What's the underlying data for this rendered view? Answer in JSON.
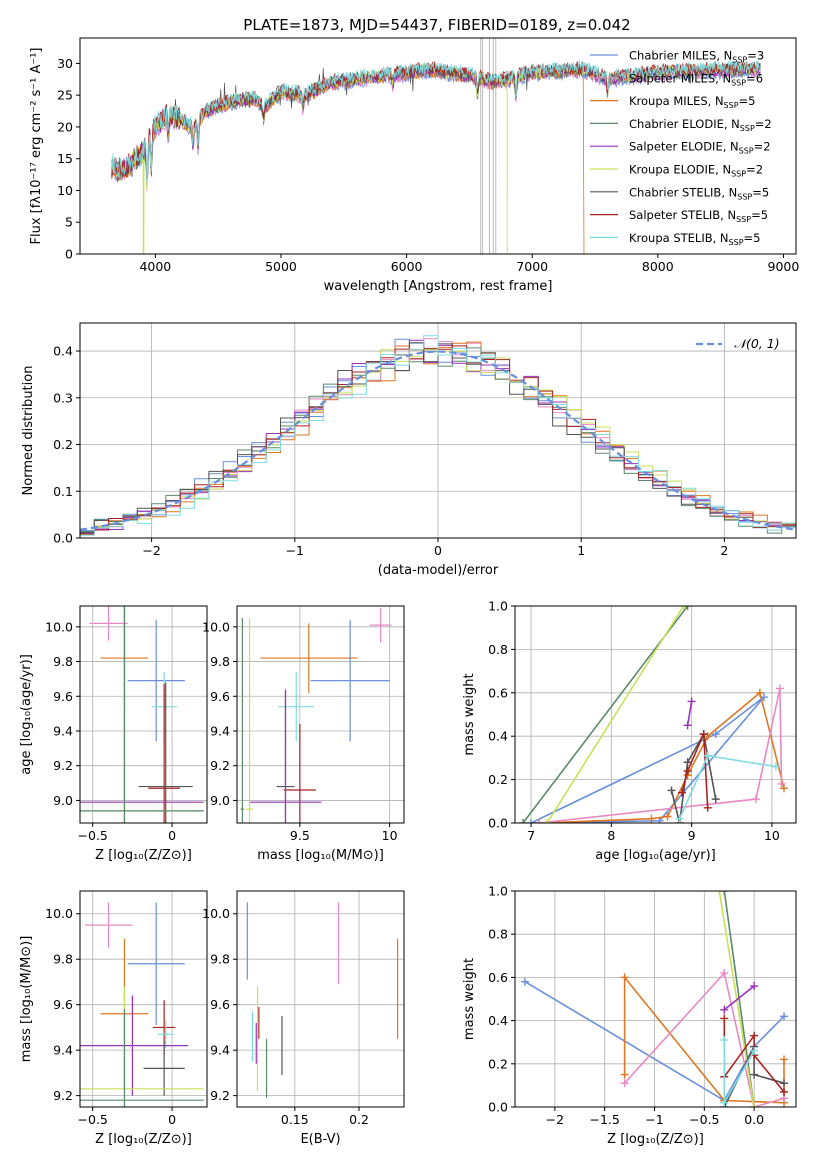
{
  "figure": {
    "title": "PLATE=1873, MJD=54437, FIBERID=0189, z=0.042"
  },
  "colors": {
    "ChabrierMILES": "#6a8fdc",
    "SalpeterMILES": "#e78ac3",
    "KroupaMILES": "#dd7722",
    "ChabrierELODIE": "#5a8a6a",
    "SalpeterELODIE": "#9933bb",
    "KroupaELODIE": "#c8e05a",
    "ChabrierSTELIB": "#555555",
    "SalpeterSTELIB": "#aa2222",
    "KroupaSTELIB": "#7fdbe0"
  },
  "chart_data": [
    {
      "id": "spectrum",
      "type": "line",
      "title": "PLATE=1873, MJD=54437, FIBERID=0189, z=0.042",
      "xlabel": "wavelength [Angstrom, rest frame]",
      "ylabel": "Flux [fλ10⁻¹⁷ erg cm⁻² s⁻¹ A⁻¹]",
      "xlim": [
        3400,
        9100
      ],
      "ylim": [
        0,
        34
      ],
      "xticks": [
        4000,
        5000,
        6000,
        7000,
        8000,
        9000
      ],
      "yticks": [
        0,
        5,
        10,
        15,
        20,
        25,
        30
      ],
      "grid": false,
      "legend_position": "top-right",
      "legend": [
        {
          "key": "ChabrierMILES",
          "label": "Chabrier MILES, N",
          "sub": "SSP",
          "tail": "=3"
        },
        {
          "key": "SalpeterMILES",
          "label": "Salpeter MILES, N",
          "sub": "SSP",
          "tail": "=6"
        },
        {
          "key": "KroupaMILES",
          "label": "Kroupa MILES, N",
          "sub": "SSP",
          "tail": "=5"
        },
        {
          "key": "ChabrierELODIE",
          "label": "Chabrier ELODIE, N",
          "sub": "SSP",
          "tail": "=2"
        },
        {
          "key": "SalpeterELODIE",
          "label": "Salpeter ELODIE, N",
          "sub": "SSP",
          "tail": "=2"
        },
        {
          "key": "KroupaELODIE",
          "label": "Kroupa ELODIE, N",
          "sub": "SSP",
          "tail": "=2"
        },
        {
          "key": "ChabrierSTELIB",
          "label": "Chabrier STELIB, N",
          "sub": "SSP",
          "tail": "=5"
        },
        {
          "key": "SalpeterSTELIB",
          "label": "Salpeter STELIB, N",
          "sub": "SSP",
          "tail": "=5"
        },
        {
          "key": "KroupaSTELIB",
          "label": "Kroupa STELIB, N",
          "sub": "SSP",
          "tail": "=5"
        }
      ],
      "continuum": [
        [
          3650,
          14
        ],
        [
          3700,
          13
        ],
        [
          3800,
          14
        ],
        [
          3900,
          16
        ],
        [
          4000,
          20
        ],
        [
          4100,
          22
        ],
        [
          4200,
          21
        ],
        [
          4300,
          20
        ],
        [
          4400,
          22.5
        ],
        [
          4600,
          24
        ],
        [
          4800,
          24.5
        ],
        [
          4860,
          23
        ],
        [
          5000,
          25.5
        ],
        [
          5200,
          25
        ],
        [
          5400,
          27
        ],
        [
          5600,
          27.5
        ],
        [
          5800,
          28
        ],
        [
          6000,
          28.5
        ],
        [
          6200,
          29
        ],
        [
          6500,
          28
        ],
        [
          6700,
          27
        ],
        [
          7000,
          28.5
        ],
        [
          7400,
          29
        ],
        [
          7600,
          27.5
        ],
        [
          8000,
          28.5
        ],
        [
          8500,
          29
        ],
        [
          8800,
          29
        ]
      ],
      "absorption": [
        [
          3934,
          -6
        ],
        [
          3968,
          -5
        ],
        [
          4102,
          -3
        ],
        [
          4300,
          -3
        ],
        [
          4340,
          -4
        ],
        [
          4861,
          -2
        ],
        [
          5175,
          -2
        ],
        [
          5890,
          -1.5
        ],
        [
          6563,
          -2.5
        ],
        [
          6870,
          -3
        ],
        [
          7600,
          -2
        ]
      ],
      "dropouts": [
        {
          "series": "KroupaELODIE",
          "x": 3905
        },
        {
          "series": "KroupaMILES",
          "x": 7410
        },
        {
          "series": "KroupaELODIE",
          "x": 6800
        }
      ],
      "masked_regions": [
        6590,
        6605,
        6660,
        6690,
        6710
      ]
    },
    {
      "id": "residuals",
      "type": "histogram",
      "xlabel": "(data-model)/error",
      "ylabel": "Normed distribution",
      "xlim": [
        -2.5,
        2.5
      ],
      "ylim": [
        0,
        0.46
      ],
      "xticks": [
        -2,
        -1,
        0,
        1,
        2
      ],
      "yticks": [
        0.0,
        0.1,
        0.2,
        0.3,
        0.4
      ],
      "grid": true,
      "bin_width": 0.1,
      "legend_position": "top-right",
      "legend_label": "𝒩(0, 1)",
      "reference_curve": "normal pdf, mean 0, sigma 1"
    },
    {
      "id": "Z-age",
      "type": "errorbar",
      "xlabel": "Z [log₁₀(Z/Z⊙)]",
      "ylabel": "age  [log₁₀(age/yr)]",
      "xlim": [
        -0.58,
        0.22
      ],
      "ylim": [
        8.87,
        10.12
      ],
      "xticks": [
        -0.5,
        0.0
      ],
      "yticks": [
        9.0,
        9.2,
        9.4,
        9.6,
        9.8,
        10.0
      ],
      "grid": true,
      "points": [
        {
          "s": "SalpeterMILES",
          "x": -0.4,
          "y": 10.02,
          "xe": 0.12,
          "ye": 0.1
        },
        {
          "s": "KroupaMILES",
          "x": -0.3,
          "y": 9.82,
          "xe": 0.15,
          "ye": 0.28
        },
        {
          "s": "ChabrierMILES",
          "x": -0.1,
          "y": 9.69,
          "xe": 0.18,
          "ye": 0.35
        },
        {
          "s": "KroupaSTELIB",
          "x": -0.05,
          "y": 9.54,
          "xe": 0.08,
          "ye": 0.2
        },
        {
          "s": "SalpeterSTELIB",
          "x": -0.05,
          "y": 9.07,
          "xe": 0.1,
          "ye": 0.6
        },
        {
          "s": "ChabrierSTELIB",
          "x": -0.04,
          "y": 9.08,
          "xe": 0.17,
          "ye": 0.6
        },
        {
          "s": "SalpeterELODIE",
          "x": -0.3,
          "y": 8.99,
          "xe": 0.5,
          "ye": 1.2
        },
        {
          "s": "KroupaELODIE",
          "x": -0.3,
          "y": 8.94,
          "xe": 0.5,
          "ye": 1.2
        },
        {
          "s": "ChabrierELODIE",
          "x": -0.3,
          "y": 8.94,
          "xe": 0.5,
          "ye": 1.2
        }
      ]
    },
    {
      "id": "mass-age",
      "type": "errorbar",
      "xlabel": "mass [log₁₀(M/M⊙)]",
      "ylabel": "",
      "xlim": [
        9.15,
        10.08
      ],
      "ylim": [
        8.87,
        10.12
      ],
      "xticks": [
        9.5,
        10.0
      ],
      "yticks": [
        9.0,
        9.2,
        9.4,
        9.6,
        9.8,
        10.0
      ],
      "grid": true,
      "points": [
        {
          "s": "SalpeterMILES",
          "x": 9.95,
          "y": 10.01,
          "xe": 0.06,
          "ye": 0.1
        },
        {
          "s": "KroupaMILES",
          "x": 9.55,
          "y": 9.82,
          "xe": 0.27,
          "ye": 0.2
        },
        {
          "s": "ChabrierMILES",
          "x": 9.78,
          "y": 9.69,
          "xe": 0.22,
          "ye": 0.35
        },
        {
          "s": "KroupaSTELIB",
          "x": 9.48,
          "y": 9.54,
          "xe": 0.1,
          "ye": 0.2
        },
        {
          "s": "SalpeterSTELIB",
          "x": 9.5,
          "y": 9.06,
          "xe": 0.09,
          "ye": 0.38
        },
        {
          "s": "ChabrierSTELIB",
          "x": 9.42,
          "y": 9.08,
          "xe": 0.05,
          "ye": 0.55
        },
        {
          "s": "SalpeterELODIE",
          "x": 9.42,
          "y": 8.99,
          "xe": 0.2,
          "ye": 0.65
        },
        {
          "s": "KroupaELODIE",
          "x": 9.22,
          "y": 8.95,
          "xe": 0.02,
          "ye": 1.1
        },
        {
          "s": "ChabrierELODIE",
          "x": 9.18,
          "y": 8.95,
          "xe": 0.01,
          "ye": 1.1
        }
      ]
    },
    {
      "id": "age-weight",
      "type": "line",
      "xlabel": "age  [log₁₀(age/yr)]",
      "ylabel": "mass weight",
      "xlim": [
        6.8,
        10.3
      ],
      "ylim": [
        0.0,
        1.0
      ],
      "xticks": [
        7,
        8,
        9,
        10
      ],
      "yticks": [
        0.0,
        0.2,
        0.4,
        0.6,
        0.8,
        1.0
      ],
      "grid": true,
      "series": [
        {
          "s": "ChabrierMILES",
          "pts": [
            [
              7.0,
              0.0
            ],
            [
              9.3,
              0.41
            ],
            [
              9.9,
              0.58
            ],
            [
              8.6,
              0.01
            ],
            [
              7.1,
              0.0
            ]
          ]
        },
        {
          "s": "KroupaMILES",
          "pts": [
            [
              7.1,
              0.0
            ],
            [
              8.5,
              0.02
            ],
            [
              8.7,
              0.03
            ],
            [
              8.95,
              0.22
            ],
            [
              9.2,
              0.4
            ],
            [
              9.85,
              0.6
            ],
            [
              10.15,
              0.16
            ]
          ]
        },
        {
          "s": "SalpeterMILES",
          "pts": [
            [
              7.1,
              0.0
            ],
            [
              9.8,
              0.11
            ],
            [
              10.1,
              0.62
            ],
            [
              10.12,
              0.18
            ]
          ]
        },
        {
          "s": "ChabrierELODIE",
          "pts": [
            [
              6.9,
              0.0
            ],
            [
              8.95,
              1.0
            ]
          ]
        },
        {
          "s": "KroupaELODIE",
          "pts": [
            [
              7.2,
              0.0
            ],
            [
              8.9,
              1.0
            ]
          ]
        },
        {
          "s": "SalpeterELODIE",
          "pts": [
            [
              8.95,
              0.45
            ],
            [
              9.0,
              0.56
            ]
          ]
        },
        {
          "s": "ChabrierSTELIB",
          "pts": [
            [
              8.75,
              0.15
            ],
            [
              8.85,
              0.0
            ],
            [
              8.95,
              0.28
            ],
            [
              9.15,
              0.41
            ],
            [
              9.3,
              0.11
            ]
          ]
        },
        {
          "s": "SalpeterSTELIB",
          "pts": [
            [
              8.88,
              0.14
            ],
            [
              8.95,
              0.24
            ],
            [
              9.15,
              0.41
            ],
            [
              9.2,
              0.07
            ]
          ]
        },
        {
          "s": "KroupaSTELIB",
          "pts": [
            [
              8.85,
              0.02
            ],
            [
              9.2,
              0.31
            ],
            [
              10.05,
              0.26
            ]
          ]
        }
      ]
    },
    {
      "id": "Z-mass",
      "type": "errorbar",
      "xlabel": "Z [log₁₀(Z/Z⊙)]",
      "ylabel": "mass [log₁₀(M/M⊙)]",
      "xlim": [
        -0.58,
        0.22
      ],
      "ylim": [
        9.15,
        10.1
      ],
      "xticks": [
        -0.5,
        0.0
      ],
      "yticks": [
        9.2,
        9.4,
        9.6,
        9.8,
        10.0
      ],
      "grid": true,
      "points": [
        {
          "s": "SalpeterMILES",
          "x": -0.4,
          "y": 9.95,
          "xe": 0.15,
          "ye": 0.1
        },
        {
          "s": "ChabrierMILES",
          "x": -0.1,
          "y": 9.78,
          "xe": 0.18,
          "ye": 0.27
        },
        {
          "s": "KroupaMILES",
          "x": -0.3,
          "y": 9.56,
          "xe": 0.15,
          "ye": 0.33
        },
        {
          "s": "SalpeterSTELIB",
          "x": -0.05,
          "y": 9.5,
          "xe": 0.07,
          "ye": 0.12
        },
        {
          "s": "KroupaSTELIB",
          "x": -0.04,
          "y": 9.47,
          "xe": 0.05,
          "ye": 0.06
        },
        {
          "s": "SalpeterELODIE",
          "x": -0.25,
          "y": 9.42,
          "xe": 0.35,
          "ye": 0.22
        },
        {
          "s": "ChabrierSTELIB",
          "x": -0.05,
          "y": 9.32,
          "xe": 0.13,
          "ye": 0.12
        },
        {
          "s": "KroupaELODIE",
          "x": -0.3,
          "y": 9.23,
          "xe": 0.5,
          "ye": 0.45
        },
        {
          "s": "ChabrierELODIE",
          "x": -0.3,
          "y": 9.18,
          "xe": 0.5,
          "ye": 0.4
        }
      ]
    },
    {
      "id": "ebv-mass",
      "type": "errorbar",
      "xlabel": "E(B-V)",
      "ylabel": "",
      "xlim": [
        0.105,
        0.235
      ],
      "ylim": [
        9.15,
        10.1
      ],
      "xticks": [
        0.15,
        0.2
      ],
      "yticks": [
        9.2,
        9.4,
        9.6,
        9.8,
        10.0
      ],
      "grid": true,
      "points": [
        {
          "s": "ChabrierMILES",
          "x": 0.113,
          "y": 9.88,
          "xe": 0,
          "ye": 0.17
        },
        {
          "s": "SalpeterMILES",
          "x": 0.184,
          "y": 9.87,
          "xe": 0,
          "ye": 0.18
        },
        {
          "s": "KroupaMILES",
          "x": 0.23,
          "y": 9.67,
          "xe": 0,
          "ye": 0.22
        },
        {
          "s": "SalpeterSTELIB",
          "x": 0.122,
          "y": 9.52,
          "xe": 0,
          "ye": 0.07
        },
        {
          "s": "SalpeterELODIE",
          "x": 0.12,
          "y": 9.43,
          "xe": 0,
          "ye": 0.09
        },
        {
          "s": "KroupaSTELIB",
          "x": 0.117,
          "y": 9.46,
          "xe": 0,
          "ye": 0.11
        },
        {
          "s": "KroupaELODIE",
          "x": 0.121,
          "y": 9.45,
          "xe": 0,
          "ye": 0.23
        },
        {
          "s": "ChabrierSTELIB",
          "x": 0.14,
          "y": 9.42,
          "xe": 0,
          "ye": 0.13
        },
        {
          "s": "ChabrierELODIE",
          "x": 0.128,
          "y": 9.32,
          "xe": 0,
          "ye": 0.13
        }
      ]
    },
    {
      "id": "Z-weight",
      "type": "line",
      "xlabel": "Z [log₁₀(Z/Z⊙)]",
      "ylabel": "mass weight",
      "xlim": [
        -2.4,
        0.42
      ],
      "ylim": [
        0.0,
        1.0
      ],
      "xticks": [
        -2.0,
        -1.5,
        -1.0,
        -0.5,
        0.0
      ],
      "yticks": [
        0.0,
        0.2,
        0.4,
        0.6,
        0.8,
        1.0
      ],
      "grid": true,
      "series": [
        {
          "s": "ChabrierMILES",
          "pts": [
            [
              -2.3,
              0.58
            ],
            [
              -0.3,
              0.03
            ],
            [
              0.0,
              0.28
            ],
            [
              0.3,
              0.42
            ]
          ]
        },
        {
          "s": "KroupaMILES",
          "pts": [
            [
              -1.3,
              0.15
            ],
            [
              -1.3,
              0.6
            ],
            [
              -0.3,
              0.03
            ],
            [
              0.3,
              0.02
            ],
            [
              0.3,
              0.22
            ]
          ]
        },
        {
          "s": "SalpeterMILES",
          "pts": [
            [
              -1.3,
              0.11
            ],
            [
              -0.3,
              0.62
            ],
            [
              0.0,
              0.0
            ],
            [
              0.3,
              0.04
            ]
          ]
        },
        {
          "s": "ChabrierELODIE",
          "pts": [
            [
              -0.3,
              1.0
            ],
            [
              0.0,
              0.0
            ]
          ]
        },
        {
          "s": "KroupaELODIE",
          "pts": [
            [
              -0.35,
              1.0
            ],
            [
              0.0,
              0.0
            ]
          ]
        },
        {
          "s": "SalpeterELODIE",
          "pts": [
            [
              -0.3,
              0.45
            ],
            [
              0.0,
              0.56
            ]
          ]
        },
        {
          "s": "ChabrierSTELIB",
          "pts": [
            [
              -0.3,
              0.0
            ],
            [
              0.0,
              0.28
            ],
            [
              0.0,
              0.15
            ],
            [
              0.3,
              0.11
            ]
          ]
        },
        {
          "s": "SalpeterSTELIB",
          "pts": [
            [
              -0.3,
              0.41
            ],
            [
              -0.3,
              0.14
            ],
            [
              0.0,
              0.33
            ],
            [
              0.0,
              0.24
            ],
            [
              0.3,
              0.07
            ]
          ]
        },
        {
          "s": "KroupaSTELIB",
          "pts": [
            [
              -0.3,
              0.31
            ],
            [
              -0.3,
              0.02
            ],
            [
              0.0,
              0.26
            ]
          ]
        }
      ]
    }
  ]
}
